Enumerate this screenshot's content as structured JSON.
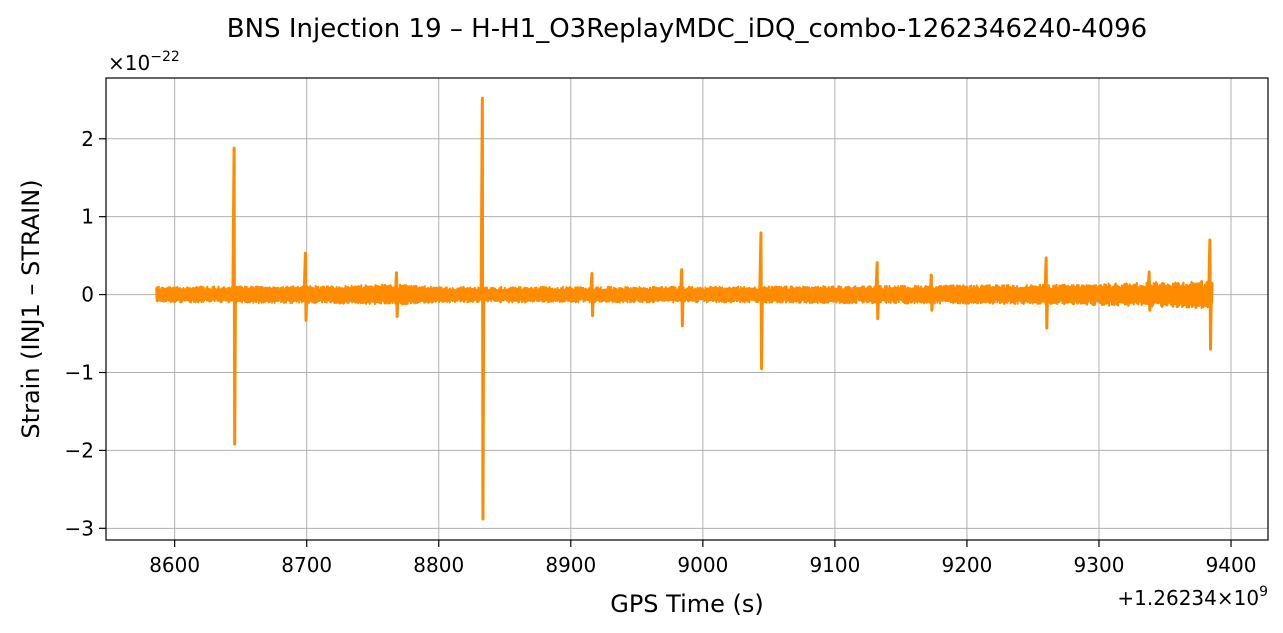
{
  "chart_data": {
    "type": "line",
    "title": "BNS Injection 19 – H-H1_O3ReplayMDC_iDQ_combo-1262346240-4096",
    "xlabel": "GPS Time (s)",
    "ylabel": "Strain (INJ1 – STRAIN)",
    "x_offset_label": "+1.26234×10",
    "x_offset_exp": "9",
    "y_scale_label": "×10",
    "y_scale_exp": "−22",
    "xlim": [
      8548,
      9428
    ],
    "ylim": [
      -3.15,
      2.78
    ],
    "xticks": [
      8600,
      8700,
      8800,
      8900,
      9000,
      9100,
      9200,
      9300,
      9400
    ],
    "yticks": [
      -3,
      -2,
      -1,
      0,
      1,
      2
    ],
    "ytick_labels": [
      "−3",
      "−2",
      "−1",
      "0",
      "1",
      "2"
    ],
    "grid": true,
    "line_color": "#ff8c00",
    "series": [
      {
        "x_start": 8586,
        "x_end": 9386,
        "noise_band": [
          [
            8586,
            0.1
          ],
          [
            8700,
            0.11
          ],
          [
            8770,
            0.13
          ],
          [
            8800,
            0.1
          ],
          [
            8900,
            0.1
          ],
          [
            9000,
            0.1
          ],
          [
            9100,
            0.11
          ],
          [
            9200,
            0.12
          ],
          [
            9290,
            0.13
          ],
          [
            9300,
            0.14
          ],
          [
            9386,
            0.18
          ]
        ],
        "spikes": [
          {
            "x": 8645,
            "max": 1.88,
            "min": -1.92
          },
          {
            "x": 8699,
            "max": 0.53,
            "min": -0.33
          },
          {
            "x": 8768,
            "max": 0.28,
            "min": -0.28
          },
          {
            "x": 8833,
            "max": 2.52,
            "min": -2.88
          },
          {
            "x": 8916,
            "max": 0.27,
            "min": -0.27
          },
          {
            "x": 8984,
            "max": 0.32,
            "min": -0.4
          },
          {
            "x": 9044,
            "max": 0.79,
            "min": -0.95
          },
          {
            "x": 9132,
            "max": 0.41,
            "min": -0.31
          },
          {
            "x": 9173,
            "max": 0.25,
            "min": -0.2
          },
          {
            "x": 9260,
            "max": 0.47,
            "min": -0.43
          },
          {
            "x": 9338,
            "max": 0.29,
            "min": -0.2
          },
          {
            "x": 9384,
            "max": 0.7,
            "min": -0.7
          }
        ]
      }
    ]
  }
}
